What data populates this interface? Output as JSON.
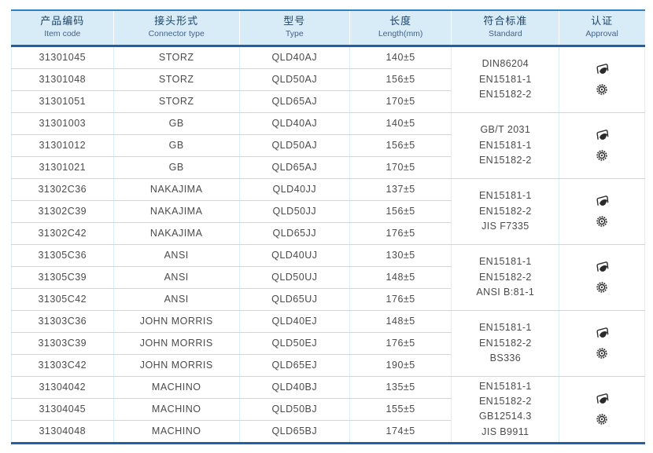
{
  "table": {
    "columns": [
      {
        "zh": "产品编码",
        "en": "Item code"
      },
      {
        "zh": "接头形式",
        "en": "Connector type"
      },
      {
        "zh": "型号",
        "en": "Type"
      },
      {
        "zh": "长度",
        "en": "Length(mm)"
      },
      {
        "zh": "符合标准",
        "en": "Standard"
      },
      {
        "zh": "认证",
        "en": "Approval"
      }
    ],
    "groups": [
      {
        "rows": [
          {
            "item_code": "31301045",
            "connector_type": "STORZ",
            "type": "QLD40AJ",
            "length": "140±5"
          },
          {
            "item_code": "31301048",
            "connector_type": "STORZ",
            "type": "QLD50AJ",
            "length": "156±5"
          },
          {
            "item_code": "31301051",
            "connector_type": "STORZ",
            "type": "QLD65AJ",
            "length": "170±5"
          }
        ],
        "standards": [
          "DIN86204",
          "EN15181-1",
          "EN15182-2"
        ],
        "approval_icons": [
          "certification-swoosh-icon",
          "certification-wheel-seal-icon"
        ]
      },
      {
        "rows": [
          {
            "item_code": "31301003",
            "connector_type": "GB",
            "type": "QLD40AJ",
            "length": "140±5"
          },
          {
            "item_code": "31301012",
            "connector_type": "GB",
            "type": "QLD50AJ",
            "length": "156±5"
          },
          {
            "item_code": "31301021",
            "connector_type": "GB",
            "type": "QLD65AJ",
            "length": "170±5"
          }
        ],
        "standards": [
          "GB/T 2031",
          "EN15181-1",
          "EN15182-2"
        ],
        "approval_icons": [
          "certification-swoosh-icon",
          "certification-wheel-seal-icon"
        ]
      },
      {
        "rows": [
          {
            "item_code": "31302C36",
            "connector_type": "NAKAJIMA",
            "type": "QLD40JJ",
            "length": "137±5"
          },
          {
            "item_code": "31302C39",
            "connector_type": "NAKAJIMA",
            "type": "QLD50JJ",
            "length": "156±5"
          },
          {
            "item_code": "31302C42",
            "connector_type": "NAKAJIMA",
            "type": "QLD65JJ",
            "length": "176±5"
          }
        ],
        "standards": [
          "EN15181-1",
          "EN15182-2",
          "JIS F7335"
        ],
        "approval_icons": [
          "certification-swoosh-icon",
          "certification-wheel-seal-icon"
        ]
      },
      {
        "rows": [
          {
            "item_code": "31305C36",
            "connector_type": "ANSI",
            "type": "QLD40UJ",
            "length": "130±5"
          },
          {
            "item_code": "31305C39",
            "connector_type": "ANSI",
            "type": "QLD50UJ",
            "length": "148±5"
          },
          {
            "item_code": "31305C42",
            "connector_type": "ANSI",
            "type": "QLD65UJ",
            "length": "176±5"
          }
        ],
        "standards": [
          "EN15181-1",
          "EN15182-2",
          "ANSI B:81-1"
        ],
        "approval_icons": [
          "certification-swoosh-icon",
          "certification-wheel-seal-icon"
        ]
      },
      {
        "rows": [
          {
            "item_code": "31303C36",
            "connector_type": "JOHN MORRIS",
            "type": "QLD40EJ",
            "length": "148±5"
          },
          {
            "item_code": "31303C39",
            "connector_type": "JOHN MORRIS",
            "type": "QLD50EJ",
            "length": "176±5"
          },
          {
            "item_code": "31303C42",
            "connector_type": "JOHN MORRIS",
            "type": "QLD65EJ",
            "length": "190±5"
          }
        ],
        "standards": [
          "EN15181-1",
          "EN15182-2",
          "BS336"
        ],
        "approval_icons": [
          "certification-swoosh-icon",
          "certification-wheel-seal-icon"
        ]
      },
      {
        "rows": [
          {
            "item_code": "31304042",
            "connector_type": "MACHINO",
            "type": "QLD40BJ",
            "length": "135±5"
          },
          {
            "item_code": "31304045",
            "connector_type": "MACHINO",
            "type": "QLD50BJ",
            "length": "155±5"
          },
          {
            "item_code": "31304048",
            "connector_type": "MACHINO",
            "type": "QLD65BJ",
            "length": "174±5"
          }
        ],
        "standards": [
          "EN15181-1",
          "EN15182-2",
          "GB12514.3",
          "JIS B9911"
        ],
        "approval_icons": [
          "certification-swoosh-icon",
          "certification-wheel-seal-icon"
        ]
      }
    ]
  },
  "colors": {
    "header_bg": "#d8ecf8",
    "accent_dark_blue": "#1c60a7",
    "accent_blue": "#3180bb",
    "row_line": "#b2dff2",
    "header_text": "#1d4368",
    "body_text": "#4b4b4b",
    "icon_ink": "#2b2b2b"
  }
}
